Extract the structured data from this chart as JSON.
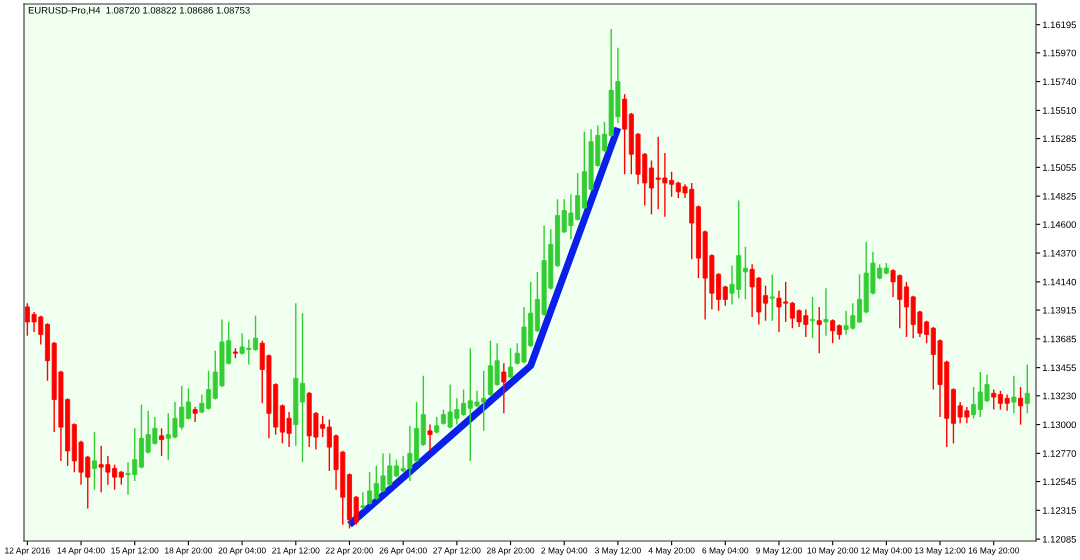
{
  "chart_data": {
    "type": "candlestick",
    "title": "EURUSD-Pro,H4  1.08720 1.08822 1.08686 1.08753",
    "categories": [
      "12 Apr 2016",
      null,
      null,
      null,
      null,
      null,
      null,
      null,
      "14 Apr 04:00",
      null,
      null,
      null,
      null,
      null,
      null,
      null,
      "15 Apr 12:00",
      null,
      null,
      null,
      null,
      null,
      null,
      null,
      "18 Apr 20:00",
      null,
      null,
      null,
      null,
      null,
      null,
      null,
      "20 Apr 04:00",
      null,
      null,
      null,
      null,
      null,
      null,
      null,
      "21 Apr 12:00",
      null,
      null,
      null,
      null,
      null,
      null,
      null,
      "22 Apr 20:00",
      null,
      null,
      null,
      null,
      null,
      null,
      null,
      "26 Apr 04:00",
      null,
      null,
      null,
      null,
      null,
      null,
      null,
      "27 Apr 12:00",
      null,
      null,
      null,
      null,
      null,
      null,
      null,
      "28 Apr 20:00",
      null,
      null,
      null,
      null,
      null,
      null,
      null,
      "2 May 04:00",
      null,
      null,
      null,
      null,
      null,
      null,
      null,
      "3 May 12:00",
      null,
      null,
      null,
      null,
      null,
      null,
      null,
      "4 May 20:00",
      null,
      null,
      null,
      null,
      null,
      null,
      null,
      "6 May 04:00",
      null,
      null,
      null,
      null,
      null,
      null,
      null,
      "9 May 12:00",
      null,
      null,
      null,
      null,
      null,
      null,
      null,
      "10 May 20:00",
      null,
      null,
      null,
      null,
      null,
      null,
      null,
      "12 May 04:00",
      null,
      null,
      null,
      null,
      null,
      null,
      null,
      "13 May 12:00",
      null,
      null,
      null,
      null,
      null,
      null,
      null,
      "16 May 20:00",
      null,
      null,
      null,
      null,
      null
    ],
    "ohlc": [
      [
        1.1394,
        1.1397,
        1.1371,
        1.1382
      ],
      [
        1.1388,
        1.139,
        1.1374,
        1.1382
      ],
      [
        1.1386,
        1.1387,
        1.1364,
        1.1372
      ],
      [
        1.138,
        1.1381,
        1.1335,
        1.1351
      ],
      [
        1.1365,
        1.1366,
        1.1294,
        1.132
      ],
      [
        1.1342,
        1.1343,
        1.1271,
        1.1298
      ],
      [
        1.132,
        1.1321,
        1.1267,
        1.1279
      ],
      [
        1.13,
        1.1301,
        1.1262,
        1.1271
      ],
      [
        1.1286,
        1.1287,
        1.1252,
        1.1262
      ],
      [
        1.1274,
        1.1275,
        1.1233,
        1.1258
      ],
      [
        1.1265,
        1.1294,
        1.1248,
        1.1271
      ],
      [
        1.1268,
        1.1283,
        1.1246,
        1.1266
      ],
      [
        1.1268,
        1.1275,
        1.1252,
        1.1262
      ],
      [
        1.1265,
        1.1268,
        1.1248,
        1.1258
      ],
      [
        1.1262,
        1.1263,
        1.1252,
        1.1258
      ],
      [
        1.126,
        1.127,
        1.1244,
        1.1261
      ],
      [
        1.126,
        1.1297,
        1.1255,
        1.1272
      ],
      [
        1.1266,
        1.1316,
        1.1265,
        1.1289
      ],
      [
        1.1278,
        1.1311,
        1.1277,
        1.1292
      ],
      [
        1.1285,
        1.1306,
        1.1284,
        1.1297
      ],
      [
        1.1291,
        1.1297,
        1.1275,
        1.1288
      ],
      [
        1.1289,
        1.1309,
        1.1272,
        1.1292
      ],
      [
        1.129,
        1.1318,
        1.1289,
        1.1305
      ],
      [
        1.1298,
        1.1331,
        1.1296,
        1.1314
      ],
      [
        1.1305,
        1.1329,
        1.1304,
        1.1318
      ],
      [
        1.1312,
        1.1314,
        1.1302,
        1.1309
      ],
      [
        1.131,
        1.1324,
        1.1309,
        1.1317
      ],
      [
        1.1313,
        1.1343,
        1.1312,
        1.1328
      ],
      [
        1.1321,
        1.1359,
        1.132,
        1.1342
      ],
      [
        1.1331,
        1.1384,
        1.133,
        1.1366
      ],
      [
        1.1349,
        1.1382,
        1.1348,
        1.1367
      ],
      [
        1.1358,
        1.1361,
        1.1353,
        1.1357
      ],
      [
        1.1357,
        1.1373,
        1.1356,
        1.1362
      ],
      [
        1.136,
        1.1368,
        1.1348,
        1.1361
      ],
      [
        1.136,
        1.1387,
        1.1359,
        1.1369
      ],
      [
        1.1365,
        1.1367,
        1.1317,
        1.1344
      ],
      [
        1.1355,
        1.1356,
        1.1289,
        1.1309
      ],
      [
        1.1332,
        1.1333,
        1.1292,
        1.1298
      ],
      [
        1.1315,
        1.1316,
        1.1285,
        1.1294
      ],
      [
        1.1305,
        1.131,
        1.1282,
        1.1293
      ],
      [
        1.13,
        1.1397,
        1.1283,
        1.1337
      ],
      [
        1.1318,
        1.1389,
        1.127,
        1.1333
      ],
      [
        1.1325,
        1.1326,
        1.1282,
        1.1291
      ],
      [
        1.1309,
        1.131,
        1.128,
        1.129
      ],
      [
        1.13,
        1.1307,
        1.129,
        1.1297
      ],
      [
        1.1298,
        1.1304,
        1.1263,
        1.1282
      ],
      [
        1.1291,
        1.1292,
        1.1248,
        1.1264
      ],
      [
        1.1278,
        1.1279,
        1.122,
        1.1242
      ],
      [
        1.126,
        1.1261,
        1.1217,
        1.1224
      ],
      [
        1.1242,
        1.1243,
        1.122,
        1.1222
      ],
      [
        1.1234,
        1.1246,
        1.1232,
        1.1235
      ],
      [
        1.1237,
        1.1262,
        1.1236,
        1.1247
      ],
      [
        1.1241,
        1.1267,
        1.124,
        1.1253
      ],
      [
        1.1247,
        1.1277,
        1.1246,
        1.1259
      ],
      [
        1.1252,
        1.1277,
        1.1251,
        1.1267
      ],
      [
        1.1259,
        1.1272,
        1.1258,
        1.1267
      ],
      [
        1.1263,
        1.1275,
        1.1262,
        1.1265
      ],
      [
        1.1265,
        1.1299,
        1.1255,
        1.1277
      ],
      [
        1.1271,
        1.1318,
        1.127,
        1.1297
      ],
      [
        1.1284,
        1.1339,
        1.1283,
        1.1308
      ],
      [
        1.1295,
        1.13,
        1.1279,
        1.1292
      ],
      [
        1.1294,
        1.1306,
        1.1293,
        1.1299
      ],
      [
        1.1301,
        1.1312,
        1.13,
        1.1308
      ],
      [
        1.1298,
        1.1332,
        1.1297,
        1.131
      ],
      [
        1.1305,
        1.1321,
        1.13,
        1.1312
      ],
      [
        1.1308,
        1.1328,
        1.1307,
        1.1317
      ],
      [
        1.1313,
        1.1361,
        1.1271,
        1.1319
      ],
      [
        1.1315,
        1.1327,
        1.1314,
        1.1318
      ],
      [
        1.1318,
        1.1343,
        1.1295,
        1.1321
      ],
      [
        1.1324,
        1.1367,
        1.1323,
        1.1347
      ],
      [
        1.1332,
        1.1365,
        1.1331,
        1.1351
      ],
      [
        1.1342,
        1.1349,
        1.1309,
        1.1334
      ],
      [
        1.1338,
        1.1361,
        1.1337,
        1.1346
      ],
      [
        1.1349,
        1.1365,
        1.1348,
        1.1357
      ],
      [
        1.135,
        1.1394,
        1.1349,
        1.1378
      ],
      [
        1.1363,
        1.1414,
        1.1362,
        1.1389
      ],
      [
        1.1375,
        1.1422,
        1.1374,
        1.14
      ],
      [
        1.1388,
        1.1459,
        1.1387,
        1.1431
      ],
      [
        1.1409,
        1.1456,
        1.1408,
        1.1444
      ],
      [
        1.1427,
        1.148,
        1.1426,
        1.1467
      ],
      [
        1.1454,
        1.148,
        1.1453,
        1.1471
      ],
      [
        1.1459,
        1.1484,
        1.1448,
        1.1469
      ],
      [
        1.1464,
        1.1501,
        1.1463,
        1.1483
      ],
      [
        1.1473,
        1.1534,
        1.1472,
        1.1502
      ],
      [
        1.1488,
        1.1536,
        1.1487,
        1.1526
      ],
      [
        1.1507,
        1.1539,
        1.1506,
        1.1531
      ],
      [
        1.1519,
        1.1542,
        1.1518,
        1.1532
      ],
      [
        1.1531,
        1.1616,
        1.153,
        1.1567
      ],
      [
        1.1546,
        1.1601,
        1.1541,
        1.1574
      ],
      [
        1.156,
        1.1564,
        1.15,
        1.1536
      ],
      [
        1.1548,
        1.1549,
        1.15,
        1.1516
      ],
      [
        1.1532,
        1.1533,
        1.1492,
        1.15
      ],
      [
        1.1516,
        1.1517,
        1.1475,
        1.1493
      ],
      [
        1.1505,
        1.1511,
        1.1468,
        1.1489
      ],
      [
        1.1497,
        1.153,
        1.1472,
        1.1496
      ],
      [
        1.1497,
        1.1517,
        1.1466,
        1.1493
      ],
      [
        1.1495,
        1.1502,
        1.1482,
        1.1492
      ],
      [
        1.1493,
        1.1494,
        1.1481,
        1.1486
      ],
      [
        1.149,
        1.1492,
        1.1481,
        1.1485
      ],
      [
        1.1488,
        1.1493,
        1.1432,
        1.1461
      ],
      [
        1.1474,
        1.1475,
        1.1417,
        1.1433
      ],
      [
        1.1454,
        1.1455,
        1.1384,
        1.1417
      ],
      [
        1.1435,
        1.1436,
        1.1392,
        1.1405
      ],
      [
        1.142,
        1.1421,
        1.1391,
        1.14
      ],
      [
        1.141,
        1.1411,
        1.1395,
        1.14
      ],
      [
        1.1405,
        1.1427,
        1.1396,
        1.1412
      ],
      [
        1.1408,
        1.1479,
        1.1401,
        1.1435
      ],
      [
        1.1422,
        1.1442,
        1.14,
        1.1425
      ],
      [
        1.1424,
        1.1428,
        1.1386,
        1.141
      ],
      [
        1.1417,
        1.1418,
        1.138,
        1.139
      ],
      [
        1.1403,
        1.1411,
        1.1383,
        1.1397
      ],
      [
        1.1401,
        1.142,
        1.1383,
        1.1402
      ],
      [
        1.1401,
        1.1407,
        1.1374,
        1.1394
      ],
      [
        1.1398,
        1.1414,
        1.1382,
        1.1397
      ],
      [
        1.1397,
        1.1398,
        1.1377,
        1.1385
      ],
      [
        1.1391,
        1.1392,
        1.1378,
        1.1382
      ],
      [
        1.1387,
        1.1392,
        1.137,
        1.138
      ],
      [
        1.1383,
        1.1402,
        1.1369,
        1.1384
      ],
      [
        1.1383,
        1.1394,
        1.1357,
        1.138
      ],
      [
        1.1382,
        1.1409,
        1.1371,
        1.1384
      ],
      [
        1.1383,
        1.1384,
        1.1365,
        1.1375
      ],
      [
        1.1379,
        1.138,
        1.1368,
        1.1372
      ],
      [
        1.1376,
        1.1391,
        1.1372,
        1.1379
      ],
      [
        1.1377,
        1.1397,
        1.1376,
        1.1387
      ],
      [
        1.1382,
        1.142,
        1.1381,
        1.14
      ],
      [
        1.139,
        1.1446,
        1.1389,
        1.1421
      ],
      [
        1.1405,
        1.1438,
        1.1404,
        1.1429
      ],
      [
        1.1417,
        1.1428,
        1.1416,
        1.1425
      ],
      [
        1.1421,
        1.1429,
        1.142,
        1.1425
      ],
      [
        1.1423,
        1.1424,
        1.1402,
        1.1414
      ],
      [
        1.1419,
        1.142,
        1.1377,
        1.14
      ],
      [
        1.141,
        1.1414,
        1.137,
        1.1394
      ],
      [
        1.1402,
        1.1403,
        1.1369,
        1.138
      ],
      [
        1.139,
        1.1391,
        1.137,
        1.1373
      ],
      [
        1.1382,
        1.1383,
        1.1365,
        1.1372
      ],
      [
        1.1377,
        1.1378,
        1.1328,
        1.1356
      ],
      [
        1.1367,
        1.1368,
        1.1306,
        1.1332
      ],
      [
        1.135,
        1.1351,
        1.1282,
        1.1305
      ],
      [
        1.1328,
        1.1329,
        1.1285,
        1.1301
      ],
      [
        1.1315,
        1.1318,
        1.1301,
        1.1306
      ],
      [
        1.1311,
        1.1314,
        1.1301,
        1.1306
      ],
      [
        1.1308,
        1.133,
        1.1305,
        1.1316
      ],
      [
        1.1312,
        1.1342,
        1.1306,
        1.1326
      ],
      [
        1.1319,
        1.134,
        1.1318,
        1.1332
      ],
      [
        1.1325,
        1.1328,
        1.1312,
        1.1322
      ],
      [
        1.1324,
        1.1327,
        1.1312,
        1.1317
      ],
      [
        1.1321,
        1.1324,
        1.1311,
        1.1317
      ],
      [
        1.1318,
        1.1339,
        1.1309,
        1.1322
      ],
      [
        1.1321,
        1.133,
        1.13,
        1.1315
      ],
      [
        1.1317,
        1.1348,
        1.1309,
        1.1325
      ]
    ],
    "colors": [
      "#ff0000",
      "#ff0000",
      "#ff0000",
      "#ff0000",
      "#ff0000",
      "#ff0000",
      "#ff0000",
      "#ff0000",
      "#ff0000",
      "#ff0000",
      "#32cd32",
      "#ff0000",
      "#ff0000",
      "#ff0000",
      "#ff0000",
      "#32cd32",
      "#32cd32",
      "#32cd32",
      "#32cd32",
      "#32cd32",
      "#ff0000",
      "#32cd32",
      "#32cd32",
      "#32cd32",
      "#32cd32",
      "#ff0000",
      "#32cd32",
      "#32cd32",
      "#32cd32",
      "#32cd32",
      "#32cd32",
      "#ff0000",
      "#32cd32",
      "#32cd32",
      "#32cd32",
      "#ff0000",
      "#ff0000",
      "#ff0000",
      "#ff0000",
      "#ff0000",
      "#32cd32",
      "#32cd32",
      "#ff0000",
      "#ff0000",
      "#ff0000",
      "#ff0000",
      "#ff0000",
      "#ff0000",
      "#ff0000",
      "#ff0000",
      "#32cd32",
      "#32cd32",
      "#32cd32",
      "#32cd32",
      "#32cd32",
      "#32cd32",
      "#32cd32",
      "#32cd32",
      "#32cd32",
      "#32cd32",
      "#ff0000",
      "#32cd32",
      "#32cd32",
      "#32cd32",
      "#32cd32",
      "#32cd32",
      "#32cd32",
      "#32cd32",
      "#32cd32",
      "#32cd32",
      "#32cd32",
      "#ff0000",
      "#32cd32",
      "#32cd32",
      "#32cd32",
      "#32cd32",
      "#32cd32",
      "#32cd32",
      "#32cd32",
      "#32cd32",
      "#32cd32",
      "#32cd32",
      "#32cd32",
      "#32cd32",
      "#32cd32",
      "#32cd32",
      "#32cd32",
      "#32cd32",
      "#32cd32",
      "#ff0000",
      "#ff0000",
      "#ff0000",
      "#ff0000",
      "#ff0000",
      "#ff0000",
      "#ff0000",
      "#ff0000",
      "#ff0000",
      "#ff0000",
      "#ff0000",
      "#ff0000",
      "#ff0000",
      "#ff0000",
      "#ff0000",
      "#ff0000",
      "#32cd32",
      "#32cd32",
      "#32cd32",
      "#ff0000",
      "#ff0000",
      "#ff0000",
      "#32cd32",
      "#ff0000",
      "#ff0000",
      "#ff0000",
      "#ff0000",
      "#ff0000",
      "#32cd32",
      "#ff0000",
      "#32cd32",
      "#ff0000",
      "#ff0000",
      "#32cd32",
      "#32cd32",
      "#32cd32",
      "#32cd32",
      "#32cd32",
      "#32cd32",
      "#32cd32",
      "#ff0000",
      "#ff0000",
      "#ff0000",
      "#ff0000",
      "#ff0000",
      "#ff0000",
      "#ff0000",
      "#ff0000",
      "#ff0000",
      "#ff0000",
      "#ff0000",
      "#ff0000",
      "#32cd32",
      "#32cd32",
      "#32cd32",
      "#ff0000",
      "#ff0000",
      "#ff0000",
      "#32cd32",
      "#ff0000",
      "#32cd32"
    ],
    "series": [
      {
        "type": "line",
        "color": "#0a1fe8",
        "values": [
          null,
          null,
          null,
          null,
          null,
          null,
          null,
          null,
          null,
          null,
          null,
          null,
          null,
          null,
          null,
          null,
          null,
          null,
          null,
          null,
          null,
          null,
          null,
          null,
          null,
          null,
          null,
          null,
          null,
          null,
          null,
          null,
          null,
          null,
          null,
          null,
          null,
          null,
          null,
          null,
          null,
          null,
          null,
          null,
          null,
          null,
          null,
          null,
          1.122,
          null,
          null,
          null,
          null,
          null,
          null,
          null,
          null,
          null,
          null,
          null,
          null,
          null,
          null,
          null,
          null,
          null,
          null,
          null,
          null,
          null,
          null,
          null,
          null,
          null,
          null,
          1.1347,
          null,
          null,
          null,
          null,
          null,
          null,
          null,
          null,
          null,
          null,
          null,
          null,
          1.1537,
          null,
          null,
          null,
          null,
          null,
          null,
          null,
          null,
          null,
          null,
          null,
          null,
          null,
          null,
          null,
          null,
          null,
          null,
          null,
          null,
          null,
          null,
          null,
          null,
          null,
          null,
          null,
          null,
          null,
          null,
          null,
          null,
          null,
          null,
          null,
          null,
          null,
          null,
          null,
          null,
          null,
          null,
          null,
          null,
          null,
          null,
          null,
          null,
          null,
          null,
          null,
          null,
          null,
          null,
          null,
          null,
          null,
          null,
          null,
          null,
          null
        ]
      }
    ],
    "ylim": [
      1.1207,
      1.1636
    ],
    "yticks": [
      1.16195,
      {
        "value": 1.1597,
        "label": "1.15970"
      },
      {
        "value": 1.1574,
        "label": "1.15740"
      },
      {
        "value": 1.1551,
        "label": "1.15510"
      },
      1.15285,
      1.15055,
      1.14825,
      {
        "value": 1.146,
        "label": "1.14600"
      },
      {
        "value": 1.1437,
        "label": "1.14370"
      },
      {
        "value": 1.1414,
        "label": "1.14140"
      },
      1.13915,
      1.13685,
      1.13455,
      {
        "value": 1.1323,
        "label": "1.13230"
      },
      {
        "value": 1.13,
        "label": "1.13000"
      },
      {
        "value": 1.1277,
        "label": "1.12770"
      },
      1.12545,
      1.12315,
      1.12085
    ],
    "grid": false,
    "legend": false
  }
}
